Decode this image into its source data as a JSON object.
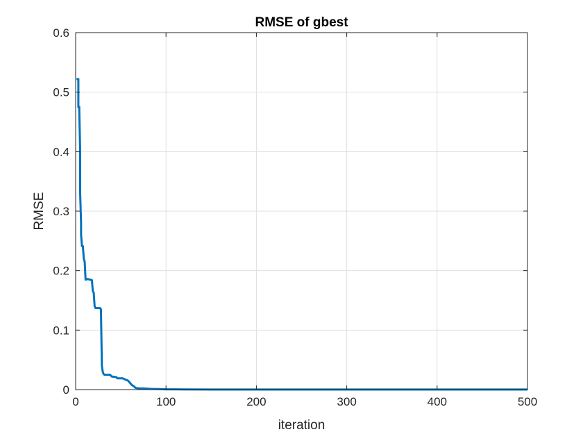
{
  "chart_data": {
    "type": "line",
    "title": "RMSE of gbest",
    "xlabel": "iteration",
    "ylabel": "RMSE",
    "xlim": [
      0,
      500
    ],
    "ylim": [
      0,
      0.6
    ],
    "xticks": [
      0,
      100,
      200,
      300,
      400,
      500
    ],
    "xtick_labels": [
      "0",
      "100",
      "200",
      "300",
      "400",
      "500"
    ],
    "yticks": [
      0,
      0.1,
      0.2,
      0.3,
      0.4,
      0.5,
      0.6
    ],
    "ytick_labels": [
      "0",
      "0.1",
      "0.2",
      "0.3",
      "0.4",
      "0.5",
      "0.6"
    ],
    "grid": true,
    "series": [
      {
        "color": "#0072BD",
        "x": [
          1,
          3,
          3,
          4,
          4,
          5,
          5,
          6,
          6,
          7,
          8,
          9,
          10,
          11,
          12,
          13,
          18,
          19,
          20,
          21,
          22,
          27,
          28,
          29,
          30,
          31,
          32,
          38,
          40,
          45,
          46,
          52,
          55,
          58,
          62,
          65,
          66,
          70,
          75,
          85,
          90,
          100,
          120,
          150,
          200,
          300,
          400,
          500
        ],
        "y": [
          0.522,
          0.522,
          0.475,
          0.475,
          0.47,
          0.4,
          0.33,
          0.28,
          0.26,
          0.241,
          0.241,
          0.22,
          0.215,
          0.185,
          0.185,
          0.186,
          0.184,
          0.165,
          0.163,
          0.14,
          0.137,
          0.137,
          0.135,
          0.04,
          0.03,
          0.026,
          0.025,
          0.025,
          0.022,
          0.021,
          0.019,
          0.019,
          0.017,
          0.015,
          0.008,
          0.005,
          0.003,
          0.002,
          0.002,
          0.001,
          0.001,
          0.0005,
          0.0003,
          0.0002,
          0.0001,
          0.0001,
          0.0001,
          0.0001
        ]
      }
    ]
  }
}
